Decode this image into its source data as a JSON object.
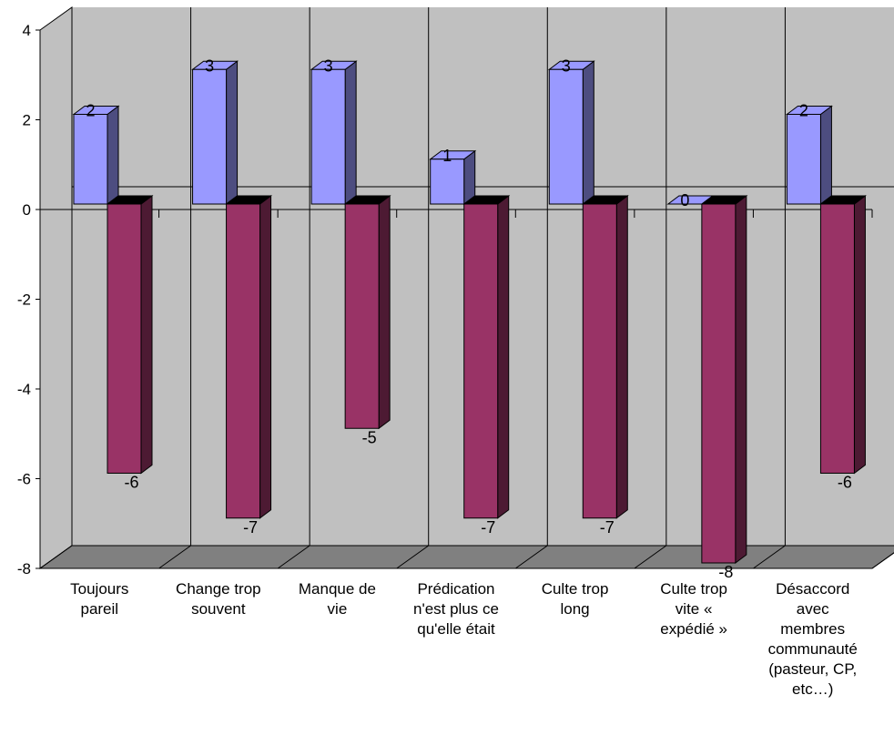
{
  "chart_data": {
    "type": "bar",
    "categories": [
      [
        "Toujours",
        "pareil"
      ],
      [
        "Change trop",
        "souvent"
      ],
      [
        "Manque de",
        "vie"
      ],
      [
        "Prédication",
        "n'est plus ce",
        "qu'elle était"
      ],
      [
        "Culte trop",
        "long"
      ],
      [
        "Culte trop",
        "vite «",
        "expédié »"
      ],
      [
        "Désaccord",
        "avec",
        "membres",
        "communauté",
        "(pasteur, CP,",
        "etc…)"
      ]
    ],
    "series": [
      {
        "values": [
          2,
          3,
          3,
          1,
          3,
          0,
          2
        ],
        "color": "#9999ff"
      },
      {
        "values": [
          -6,
          -7,
          -5,
          -7,
          -7,
          -8,
          -6
        ],
        "color": "#993366"
      }
    ],
    "data_labels": [
      [
        "2",
        "3",
        "3",
        "1",
        "3",
        "0",
        "2"
      ],
      [
        "-6",
        "-7",
        "-5",
        "-7",
        "-7",
        "-8",
        "-6"
      ]
    ],
    "y_ticks": [
      "4",
      "2",
      "0",
      "-2",
      "-4",
      "-6",
      "-8"
    ],
    "ylim": [
      -8,
      4
    ],
    "grid": true,
    "legend": "none",
    "style": "3d-clustered-column",
    "colors": {
      "wall": "#c0c0c0",
      "floor": "#808080"
    }
  }
}
